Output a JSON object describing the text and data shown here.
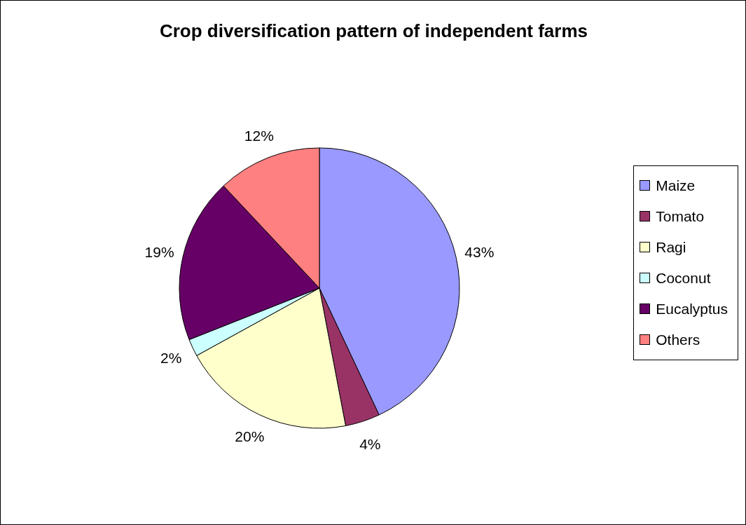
{
  "chart_data": {
    "type": "pie",
    "title": "Crop diversification pattern of independent farms",
    "categories": [
      "Maize",
      "Tomato",
      "Ragi",
      "Coconut",
      "Eucalyptus",
      "Others"
    ],
    "values": [
      43,
      4,
      20,
      2,
      19,
      12
    ],
    "colors": [
      "#9999ff",
      "#993366",
      "#ffffcc",
      "#ccffff",
      "#660066",
      "#ff8080"
    ],
    "value_labels": [
      "43%",
      "4%",
      "20%",
      "2%",
      "19%",
      "12%"
    ],
    "legend": "right"
  }
}
